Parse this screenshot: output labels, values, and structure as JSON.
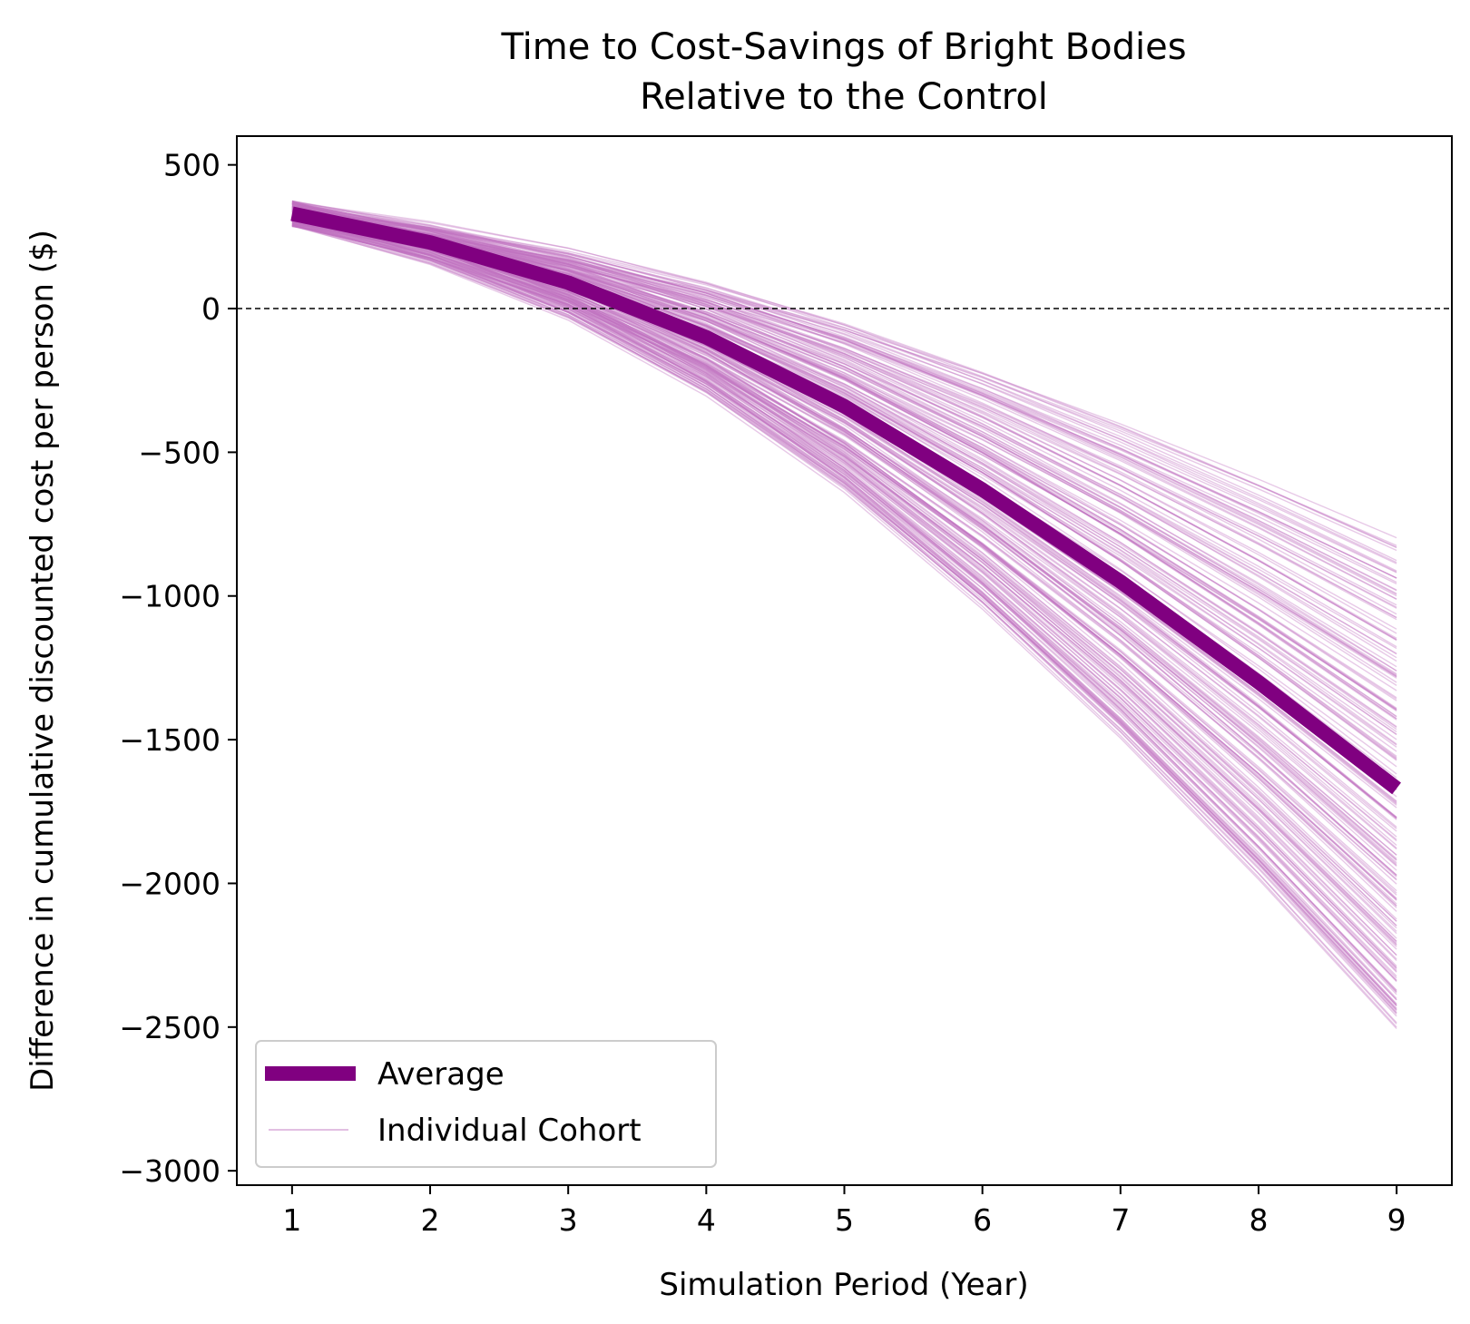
{
  "chart_data": {
    "type": "line",
    "title": "Time to Cost-Savings of Bright Bodies",
    "subtitle": "Relative to the Control",
    "xlabel": "Simulation Period (Year)",
    "ylabel": "Difference in cumulative discounted cost per person ($)",
    "x": [
      1,
      2,
      3,
      4,
      5,
      6,
      7,
      8,
      9
    ],
    "xlim": [
      0.6,
      9.4
    ],
    "ylim": [
      -3050,
      600
    ],
    "xticks": [
      1,
      2,
      3,
      4,
      5,
      6,
      7,
      8,
      9
    ],
    "yticks": [
      500,
      0,
      -500,
      -1000,
      -1500,
      -2000,
      -2500,
      -3000
    ],
    "ytick_labels": [
      "500",
      "0",
      "−500",
      "−1000",
      "−1500",
      "−2000",
      "−2500",
      "−3000"
    ],
    "reference_line": {
      "y": 0,
      "style": "dashed",
      "color": "#000000"
    },
    "series": [
      {
        "name": "Average",
        "color": "#800080",
        "values": [
          330,
          230,
          90,
          -100,
          -340,
          -630,
          -950,
          -1300,
          -1670
        ]
      },
      {
        "name": "Individual Cohort",
        "color": "#c071c0",
        "count": 200,
        "start_range": [
          240,
          430
        ],
        "end_range": [
          -2880,
          -670
        ]
      }
    ],
    "legend": {
      "position": "lower-left",
      "entries": [
        "Average",
        "Individual Cohort"
      ]
    },
    "grid": false
  }
}
